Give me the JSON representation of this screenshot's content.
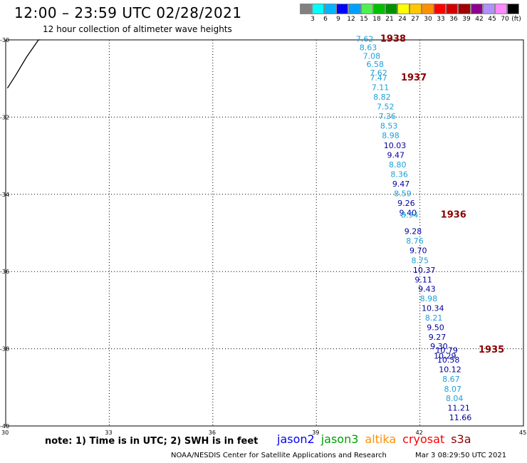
{
  "header": {
    "title": "12:00 – 23:59 UTC 02/28/2021",
    "subtitle": "12 hour collection of altimeter wave heights"
  },
  "colorbar": {
    "unit": "(ft)",
    "colors": [
      "#808080",
      "#00ffff",
      "#00b4ff",
      "#0000ff",
      "#00a0ff",
      "#50f050",
      "#00c000",
      "#009000",
      "#ffff00",
      "#ffc800",
      "#ff9000",
      "#ff0000",
      "#d00000",
      "#a00000",
      "#900090",
      "#b090ff",
      "#ff88ff",
      "#000000"
    ],
    "labels": [
      "3",
      "6",
      "9",
      "12",
      "15",
      "18",
      "21",
      "24",
      "27",
      "30",
      "33",
      "36",
      "39",
      "42",
      "45",
      "70"
    ]
  },
  "map": {
    "lon_min": 30,
    "lon_max": 45,
    "lat_min": -40,
    "lat_max": -30,
    "x_ticks": [
      30,
      33,
      36,
      39,
      42,
      45
    ],
    "y_ticks": [
      -30,
      -32,
      -34,
      -36,
      -38,
      -40
    ],
    "coastline": [
      [
        30.05,
        -31.25
      ],
      [
        30.3,
        -30.9
      ],
      [
        30.6,
        -30.45
      ],
      [
        30.95,
        -30.0
      ],
      [
        31.0,
        -30.0
      ]
    ],
    "passes": [
      {
        "label": "1938",
        "lon": 40.85,
        "lat": -30.05,
        "color": "#8b0000"
      },
      {
        "label": "1937",
        "lon": 41.45,
        "lat": -31.05,
        "color": "#8b0000"
      },
      {
        "label": "1936",
        "lon": 42.6,
        "lat": -34.6,
        "color": "#8b0000"
      },
      {
        "label": "1935",
        "lon": 43.7,
        "lat": -38.1,
        "color": "#8b0000"
      }
    ],
    "observations": [
      {
        "lon": 40.15,
        "lat": -30.05,
        "v": "7.62",
        "c": "#1ca0d8"
      },
      {
        "lon": 40.25,
        "lat": -30.27,
        "v": "8.63",
        "c": "#1ca0d8"
      },
      {
        "lon": 40.35,
        "lat": -30.49,
        "v": "7.08",
        "c": "#1ca0d8"
      },
      {
        "lon": 40.45,
        "lat": -30.7,
        "v": "6.58",
        "c": "#1ca0d8"
      },
      {
        "lon": 40.55,
        "lat": -30.92,
        "v": "7.62",
        "c": "#1ca0d8"
      },
      {
        "lon": 40.55,
        "lat": -31.05,
        "v": "7.47",
        "c": "#1ca0d8"
      },
      {
        "lon": 40.6,
        "lat": -31.3,
        "v": "7.11",
        "c": "#1ca0d8"
      },
      {
        "lon": 40.65,
        "lat": -31.55,
        "v": "8.82",
        "c": "#1ca0d8"
      },
      {
        "lon": 40.75,
        "lat": -31.8,
        "v": "7.52",
        "c": "#1ca0d8"
      },
      {
        "lon": 40.8,
        "lat": -32.05,
        "v": "7.36",
        "c": "#1ca0d8"
      },
      {
        "lon": 40.85,
        "lat": -32.3,
        "v": "8.53",
        "c": "#1ca0d8"
      },
      {
        "lon": 40.9,
        "lat": -32.55,
        "v": "8.98",
        "c": "#1ca0d8"
      },
      {
        "lon": 40.95,
        "lat": -32.8,
        "v": "10.03",
        "c": "#0000a0"
      },
      {
        "lon": 41.05,
        "lat": -33.05,
        "v": "9.47",
        "c": "#0000a0"
      },
      {
        "lon": 41.1,
        "lat": -33.3,
        "v": "8.80",
        "c": "#1ca0d8"
      },
      {
        "lon": 41.15,
        "lat": -33.55,
        "v": "8.36",
        "c": "#1ca0d8"
      },
      {
        "lon": 41.2,
        "lat": -33.8,
        "v": "9.47",
        "c": "#0000a0"
      },
      {
        "lon": 41.25,
        "lat": -34.05,
        "v": "8.59",
        "c": "#1ca0d8"
      },
      {
        "lon": 41.35,
        "lat": -34.3,
        "v": "9.26",
        "c": "#0000a0"
      },
      {
        "lon": 41.4,
        "lat": -34.55,
        "v": "9.40",
        "c": "#0000a0"
      },
      {
        "lon": 41.45,
        "lat": -34.6,
        "v": "8.94",
        "c": "#1ca0d8"
      },
      {
        "lon": 41.55,
        "lat": -35.03,
        "v": "9.28",
        "c": "#0000a0"
      },
      {
        "lon": 41.6,
        "lat": -35.28,
        "v": "8.76",
        "c": "#1ca0d8"
      },
      {
        "lon": 41.7,
        "lat": -35.53,
        "v": "9.70",
        "c": "#0000a0"
      },
      {
        "lon": 41.75,
        "lat": -35.78,
        "v": "8.75",
        "c": "#1ca0d8"
      },
      {
        "lon": 41.8,
        "lat": -36.03,
        "v": "10.37",
        "c": "#0000a0"
      },
      {
        "lon": 41.85,
        "lat": -36.28,
        "v": "9.11",
        "c": "#0000a0"
      },
      {
        "lon": 41.95,
        "lat": -36.52,
        "v": "9.43",
        "c": "#0000a0"
      },
      {
        "lon": 42.0,
        "lat": -36.77,
        "v": "8.98",
        "c": "#1ca0d8"
      },
      {
        "lon": 42.05,
        "lat": -37.02,
        "v": "10.34",
        "c": "#0000a0"
      },
      {
        "lon": 42.15,
        "lat": -37.27,
        "v": "8.21",
        "c": "#1ca0d8"
      },
      {
        "lon": 42.2,
        "lat": -37.52,
        "v": "9.50",
        "c": "#0000a0"
      },
      {
        "lon": 42.25,
        "lat": -37.77,
        "v": "9.27",
        "c": "#0000a0"
      },
      {
        "lon": 42.3,
        "lat": -38.01,
        "v": "9.30",
        "c": "#0000a0"
      },
      {
        "lon": 42.4,
        "lat": -38.26,
        "v": "10.29",
        "c": "#0000a0"
      },
      {
        "lon": 42.45,
        "lat": -38.11,
        "v": "10.79",
        "c": "#0000a0"
      },
      {
        "lon": 42.5,
        "lat": -38.36,
        "v": "10.58",
        "c": "#0000a0"
      },
      {
        "lon": 42.55,
        "lat": -38.61,
        "v": "10.12",
        "c": "#0000a0"
      },
      {
        "lon": 42.65,
        "lat": -38.86,
        "v": "8.67",
        "c": "#1ca0d8"
      },
      {
        "lon": 42.7,
        "lat": -39.11,
        "v": "8.07",
        "c": "#1ca0d8"
      },
      {
        "lon": 42.75,
        "lat": -39.35,
        "v": "8.04",
        "c": "#1ca0d8"
      },
      {
        "lon": 42.8,
        "lat": -39.6,
        "v": "11.21",
        "c": "#0000a0"
      },
      {
        "lon": 42.85,
        "lat": -39.85,
        "v": "11.66",
        "c": "#0000a0"
      }
    ]
  },
  "footer": {
    "note": "note:  1) Time is in UTC;  2) SWH is in feet",
    "legend": [
      {
        "name": "jason2",
        "color": "#0000ff"
      },
      {
        "name": "jason3",
        "color": "#00a000"
      },
      {
        "name": "altika",
        "color": "#ff9000"
      },
      {
        "name": "cryosat",
        "color": "#ff0000"
      },
      {
        "name": "s3a",
        "color": "#8b0000"
      }
    ],
    "credit": "NOAA/NESDIS Center for Satellite Applications and Research",
    "timestamp": "Mar  3 08:29:50 UTC 2021"
  }
}
